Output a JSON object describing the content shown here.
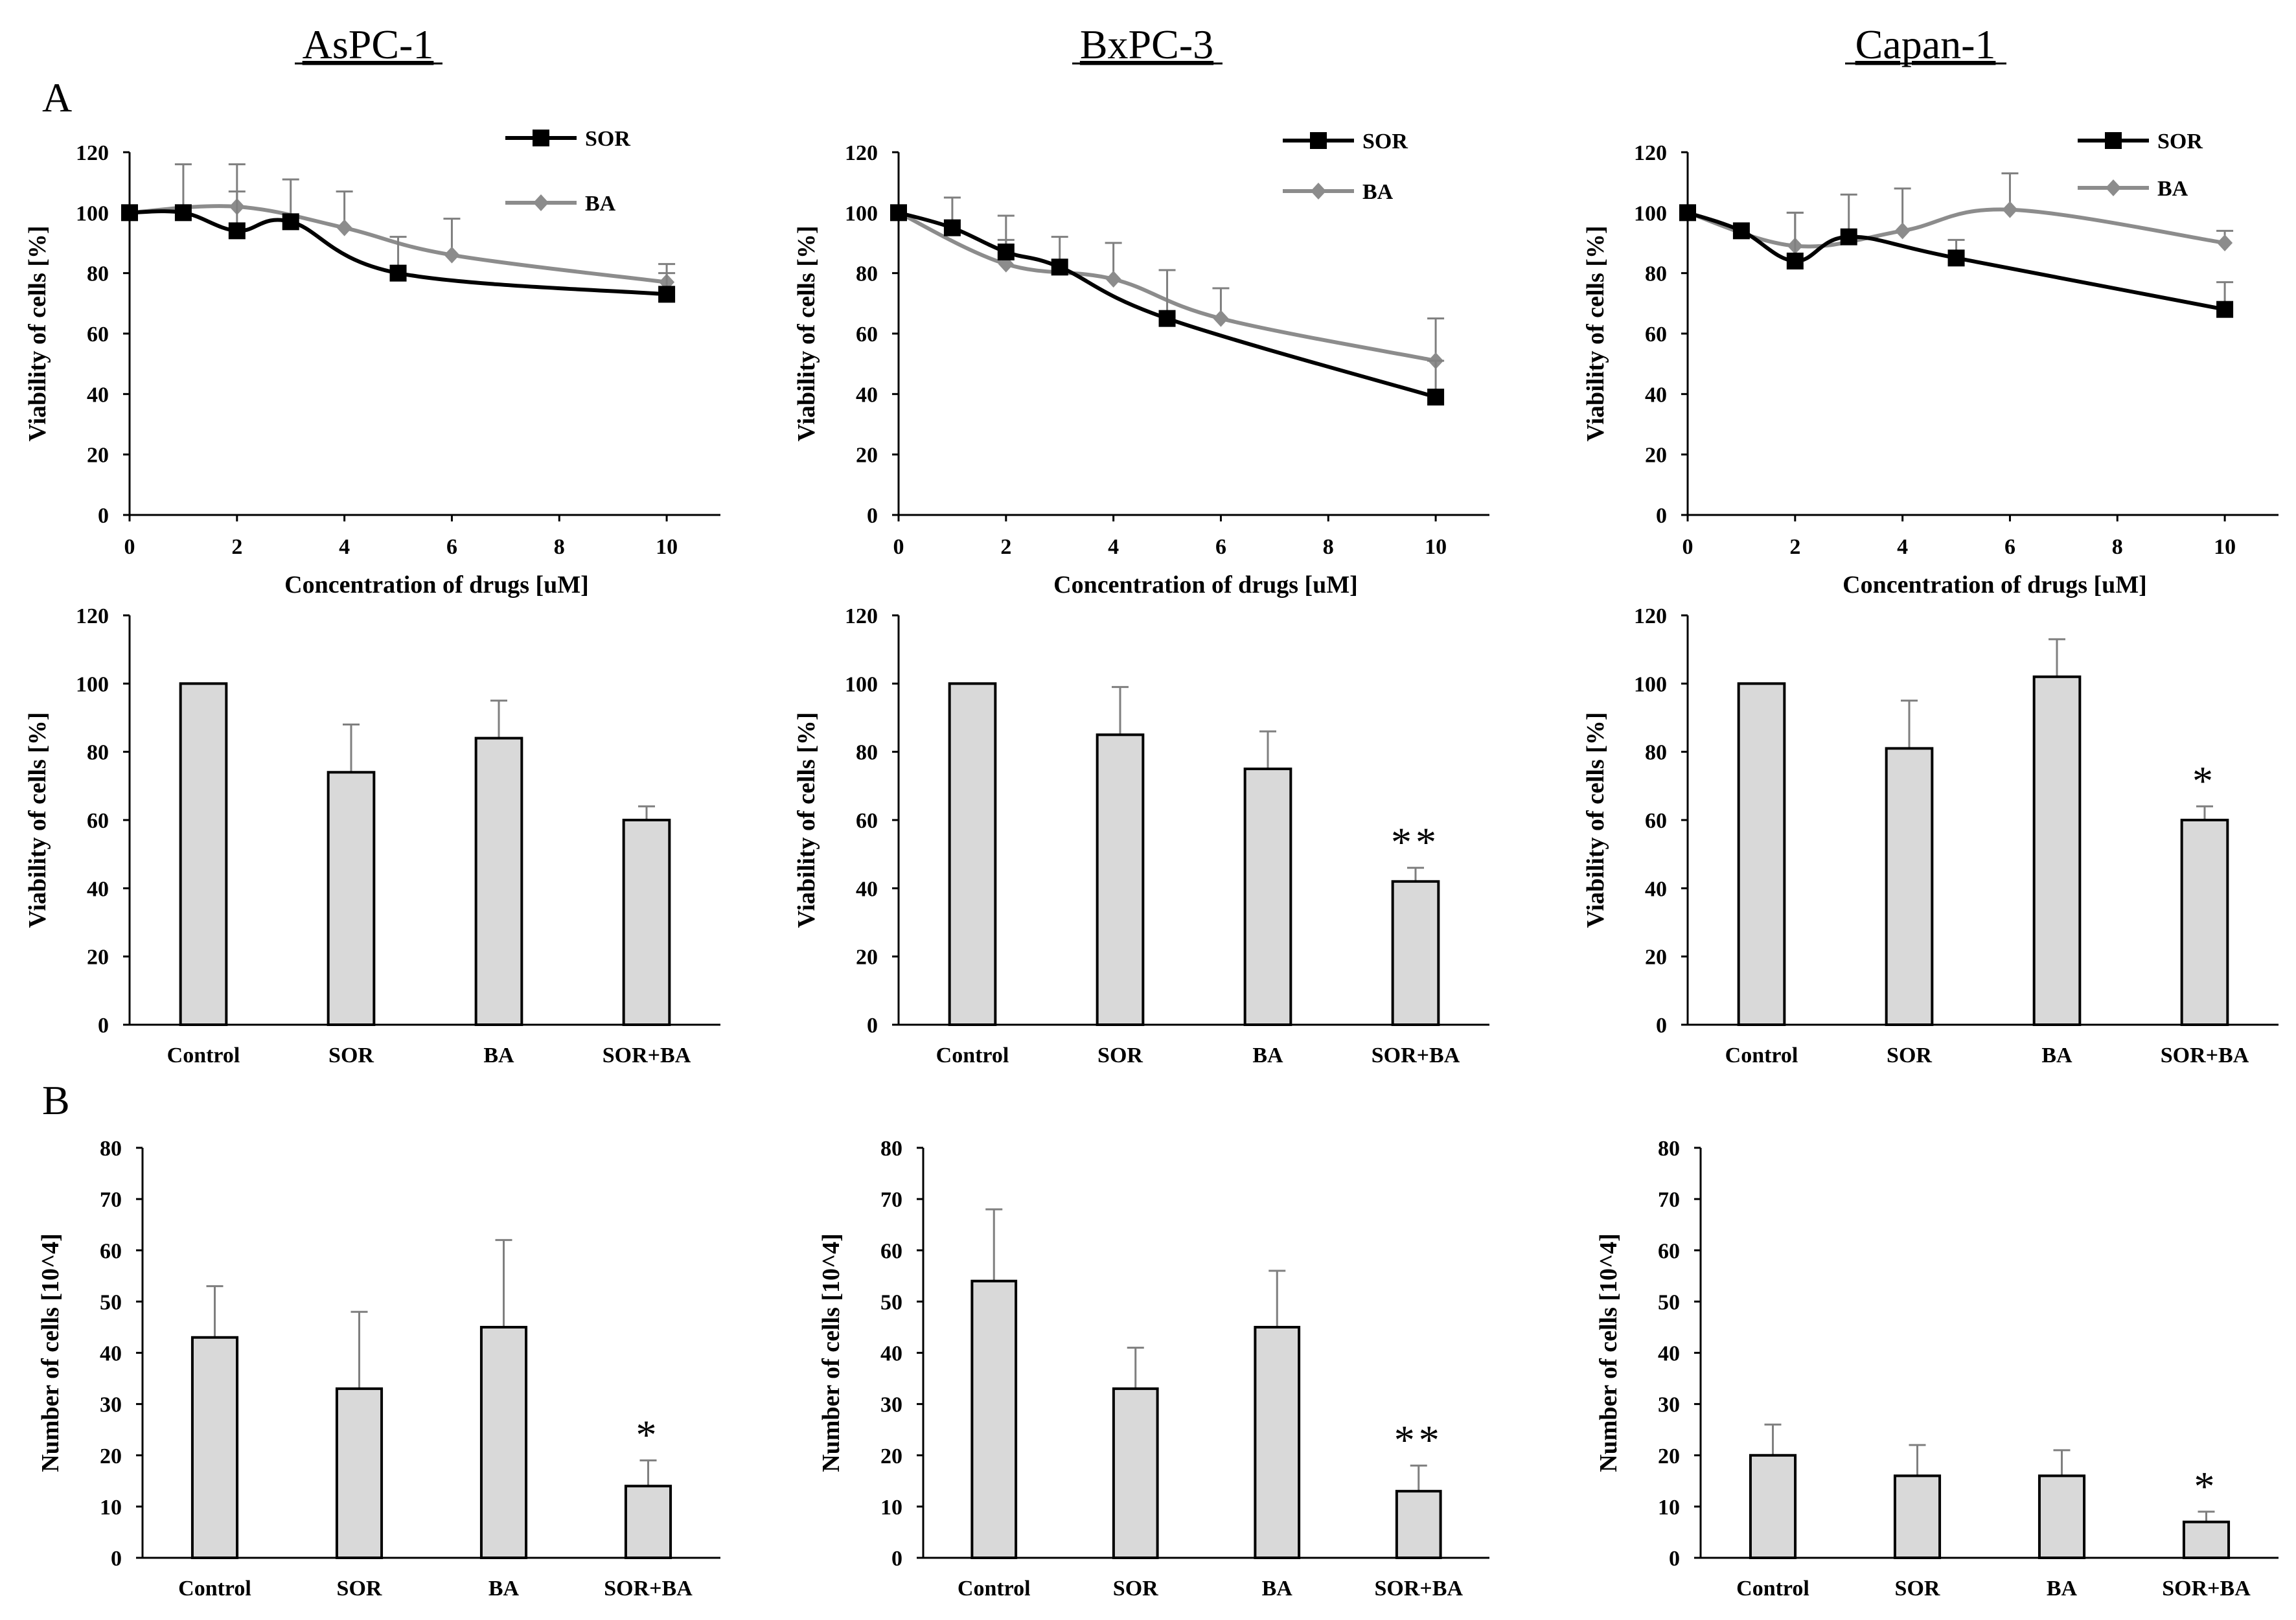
{
  "titles": [
    "AsPC-1",
    "BxPC-3",
    "Capan-1"
  ],
  "panel_labels": [
    "A",
    "B"
  ],
  "colors": {
    "sor": "#000000",
    "ba": "#8c8c8c",
    "bar_fill": "#d9d9d9",
    "error": "#7f7f7f"
  },
  "chart_data": [
    {
      "id": "line-aspc1",
      "type": "line",
      "title": "AsPC-1",
      "xlabel": "Concentration of drugs [uM]",
      "ylabel": "Viability of cells [%]",
      "xlim": [
        0,
        11
      ],
      "ylim": [
        0,
        120
      ],
      "xticks": [
        0,
        2,
        4,
        6,
        8,
        10
      ],
      "yticks": [
        0,
        20,
        40,
        60,
        80,
        100,
        120
      ],
      "legend": [
        "SOR",
        "BA"
      ],
      "series": [
        {
          "name": "SOR",
          "x": [
            0,
            1,
            2,
            3,
            5,
            10
          ],
          "values": [
            100,
            100,
            94,
            97,
            80,
            73
          ],
          "errors": [
            0,
            16,
            13,
            14,
            12,
            7
          ],
          "marker": "square"
        },
        {
          "name": "BA",
          "x": [
            0,
            2,
            4,
            6,
            10
          ],
          "values": [
            100,
            102,
            95,
            86,
            77
          ],
          "errors": [
            0,
            14,
            12,
            12,
            6
          ],
          "marker": "diamond"
        }
      ]
    },
    {
      "id": "line-bxpc3",
      "type": "line",
      "title": "BxPC-3",
      "xlabel": "Concentration of drugs [uM]",
      "ylabel": "Viability of cells [%]",
      "xlim": [
        0,
        11
      ],
      "ylim": [
        0,
        120
      ],
      "xticks": [
        0,
        2,
        4,
        6,
        8,
        10
      ],
      "yticks": [
        0,
        20,
        40,
        60,
        80,
        100,
        120
      ],
      "legend": [
        "SOR",
        "BA"
      ],
      "series": [
        {
          "name": "SOR",
          "x": [
            0,
            1,
            2,
            3,
            5,
            10
          ],
          "values": [
            100,
            95,
            87,
            82,
            65,
            39
          ],
          "errors": [
            0,
            10,
            12,
            10,
            16,
            12
          ],
          "marker": "square"
        },
        {
          "name": "BA",
          "x": [
            0,
            2,
            4,
            6,
            10
          ],
          "values": [
            100,
            83,
            78,
            65,
            51
          ],
          "errors": [
            0,
            8,
            12,
            10,
            14
          ],
          "marker": "diamond"
        }
      ]
    },
    {
      "id": "line-capan1",
      "type": "line",
      "title": "Capan-1",
      "xlabel": "Concentration of drugs [uM]",
      "ylabel": "Viability of cells [%]",
      "xlim": [
        0,
        11
      ],
      "ylim": [
        0,
        120
      ],
      "xticks": [
        0,
        2,
        4,
        6,
        8,
        10
      ],
      "yticks": [
        0,
        20,
        40,
        60,
        80,
        100,
        120
      ],
      "legend": [
        "SOR",
        "BA"
      ],
      "series": [
        {
          "name": "SOR",
          "x": [
            0,
            1,
            2,
            3,
            5,
            10
          ],
          "values": [
            100,
            94,
            84,
            92,
            85,
            68
          ],
          "errors": [
            0,
            0,
            16,
            14,
            6,
            9
          ],
          "marker": "square"
        },
        {
          "name": "BA",
          "x": [
            0,
            2,
            4,
            6,
            10
          ],
          "values": [
            100,
            89,
            94,
            101,
            90
          ],
          "errors": [
            0,
            11,
            14,
            12,
            4
          ],
          "marker": "diamond"
        }
      ]
    },
    {
      "id": "bar-viability-aspc1",
      "type": "bar",
      "ylabel": "Viability of cells [%]",
      "ylim": [
        0,
        120
      ],
      "yticks": [
        0,
        20,
        40,
        60,
        80,
        100,
        120
      ],
      "categories": [
        "Control",
        "SOR",
        "BA",
        "SOR+BA"
      ],
      "values": [
        100,
        74,
        84,
        60
      ],
      "errors": [
        0,
        14,
        11,
        4
      ],
      "significance": [
        "",
        "",
        "",
        ""
      ]
    },
    {
      "id": "bar-viability-bxpc3",
      "type": "bar",
      "ylabel": "Viability of cells [%]",
      "ylim": [
        0,
        120
      ],
      "yticks": [
        0,
        20,
        40,
        60,
        80,
        100,
        120
      ],
      "categories": [
        "Control",
        "SOR",
        "BA",
        "SOR+BA"
      ],
      "values": [
        100,
        85,
        75,
        42
      ],
      "errors": [
        0,
        14,
        11,
        4
      ],
      "significance": [
        "",
        "",
        "",
        "**"
      ]
    },
    {
      "id": "bar-viability-capan1",
      "type": "bar",
      "ylabel": "Viability of cells [%]",
      "ylim": [
        0,
        120
      ],
      "yticks": [
        0,
        20,
        40,
        60,
        80,
        100,
        120
      ],
      "categories": [
        "Control",
        "SOR",
        "BA",
        "SOR+BA"
      ],
      "values": [
        100,
        81,
        102,
        60
      ],
      "errors": [
        0,
        14,
        11,
        4
      ],
      "significance": [
        "",
        "",
        "",
        "*"
      ]
    },
    {
      "id": "bar-number-aspc1",
      "type": "bar",
      "ylabel": "Number of cells [10^4]",
      "ylim": [
        0,
        80
      ],
      "yticks": [
        0,
        10,
        20,
        30,
        40,
        50,
        60,
        70,
        80
      ],
      "categories": [
        "Control",
        "SOR",
        "BA",
        "SOR+BA"
      ],
      "values": [
        43,
        33,
        45,
        14
      ],
      "errors": [
        10,
        15,
        17,
        5
      ],
      "significance": [
        "",
        "",
        "",
        "*"
      ]
    },
    {
      "id": "bar-number-bxpc3",
      "type": "bar",
      "ylabel": "Number of cells [10^4]",
      "ylim": [
        0,
        80
      ],
      "yticks": [
        0,
        10,
        20,
        30,
        40,
        50,
        60,
        70,
        80
      ],
      "categories": [
        "Control",
        "SOR",
        "BA",
        "SOR+BA"
      ],
      "values": [
        54,
        33,
        45,
        13
      ],
      "errors": [
        14,
        8,
        11,
        5
      ],
      "significance": [
        "",
        "",
        "",
        "**"
      ]
    },
    {
      "id": "bar-number-capan1",
      "type": "bar",
      "ylabel": "Number of cells [10^4]",
      "ylim": [
        0,
        80
      ],
      "yticks": [
        0,
        10,
        20,
        30,
        40,
        50,
        60,
        70,
        80
      ],
      "categories": [
        "Control",
        "SOR",
        "BA",
        "SOR+BA"
      ],
      "values": [
        20,
        16,
        16,
        7
      ],
      "errors": [
        6,
        6,
        5,
        2
      ],
      "significance": [
        "",
        "",
        "",
        "*"
      ]
    }
  ]
}
